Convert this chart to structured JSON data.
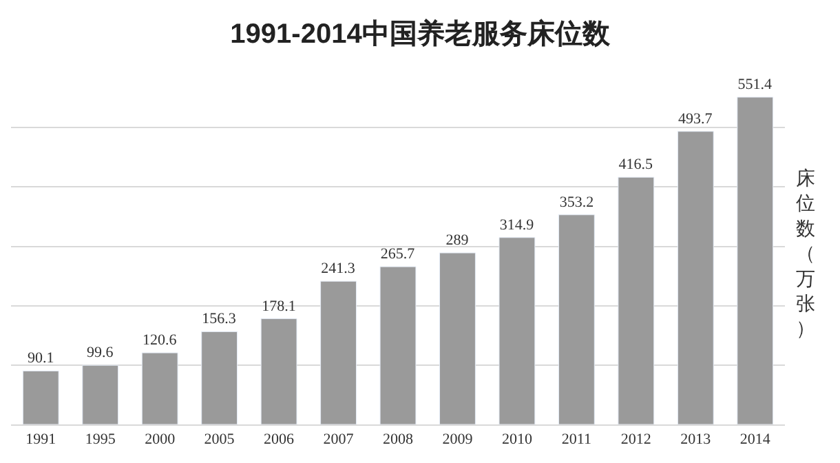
{
  "chart_data": {
    "type": "bar",
    "title": "1991-2014中国养老服务床位数",
    "ylabel": "床位数（万张）",
    "categories": [
      "1991",
      "1995",
      "2000",
      "2005",
      "2006",
      "2007",
      "2008",
      "2009",
      "2010",
      "2011",
      "2012",
      "2013",
      "2014"
    ],
    "values": [
      90.1,
      99.6,
      120.6,
      156.3,
      178.1,
      241.3,
      265.7,
      289,
      314.9,
      353.2,
      416.5,
      493.7,
      551.4
    ],
    "color": "#9a9a9a",
    "data_labels": true,
    "value_labels": [
      "90.1",
      "99.6",
      "120.6",
      "156.3",
      "178.1",
      "241.3",
      "265.7",
      "289",
      "314.9",
      "353.2",
      "416.5",
      "493.7",
      "551.4"
    ],
    "tick_labels": "x",
    "grid": "y",
    "legend": false
  }
}
